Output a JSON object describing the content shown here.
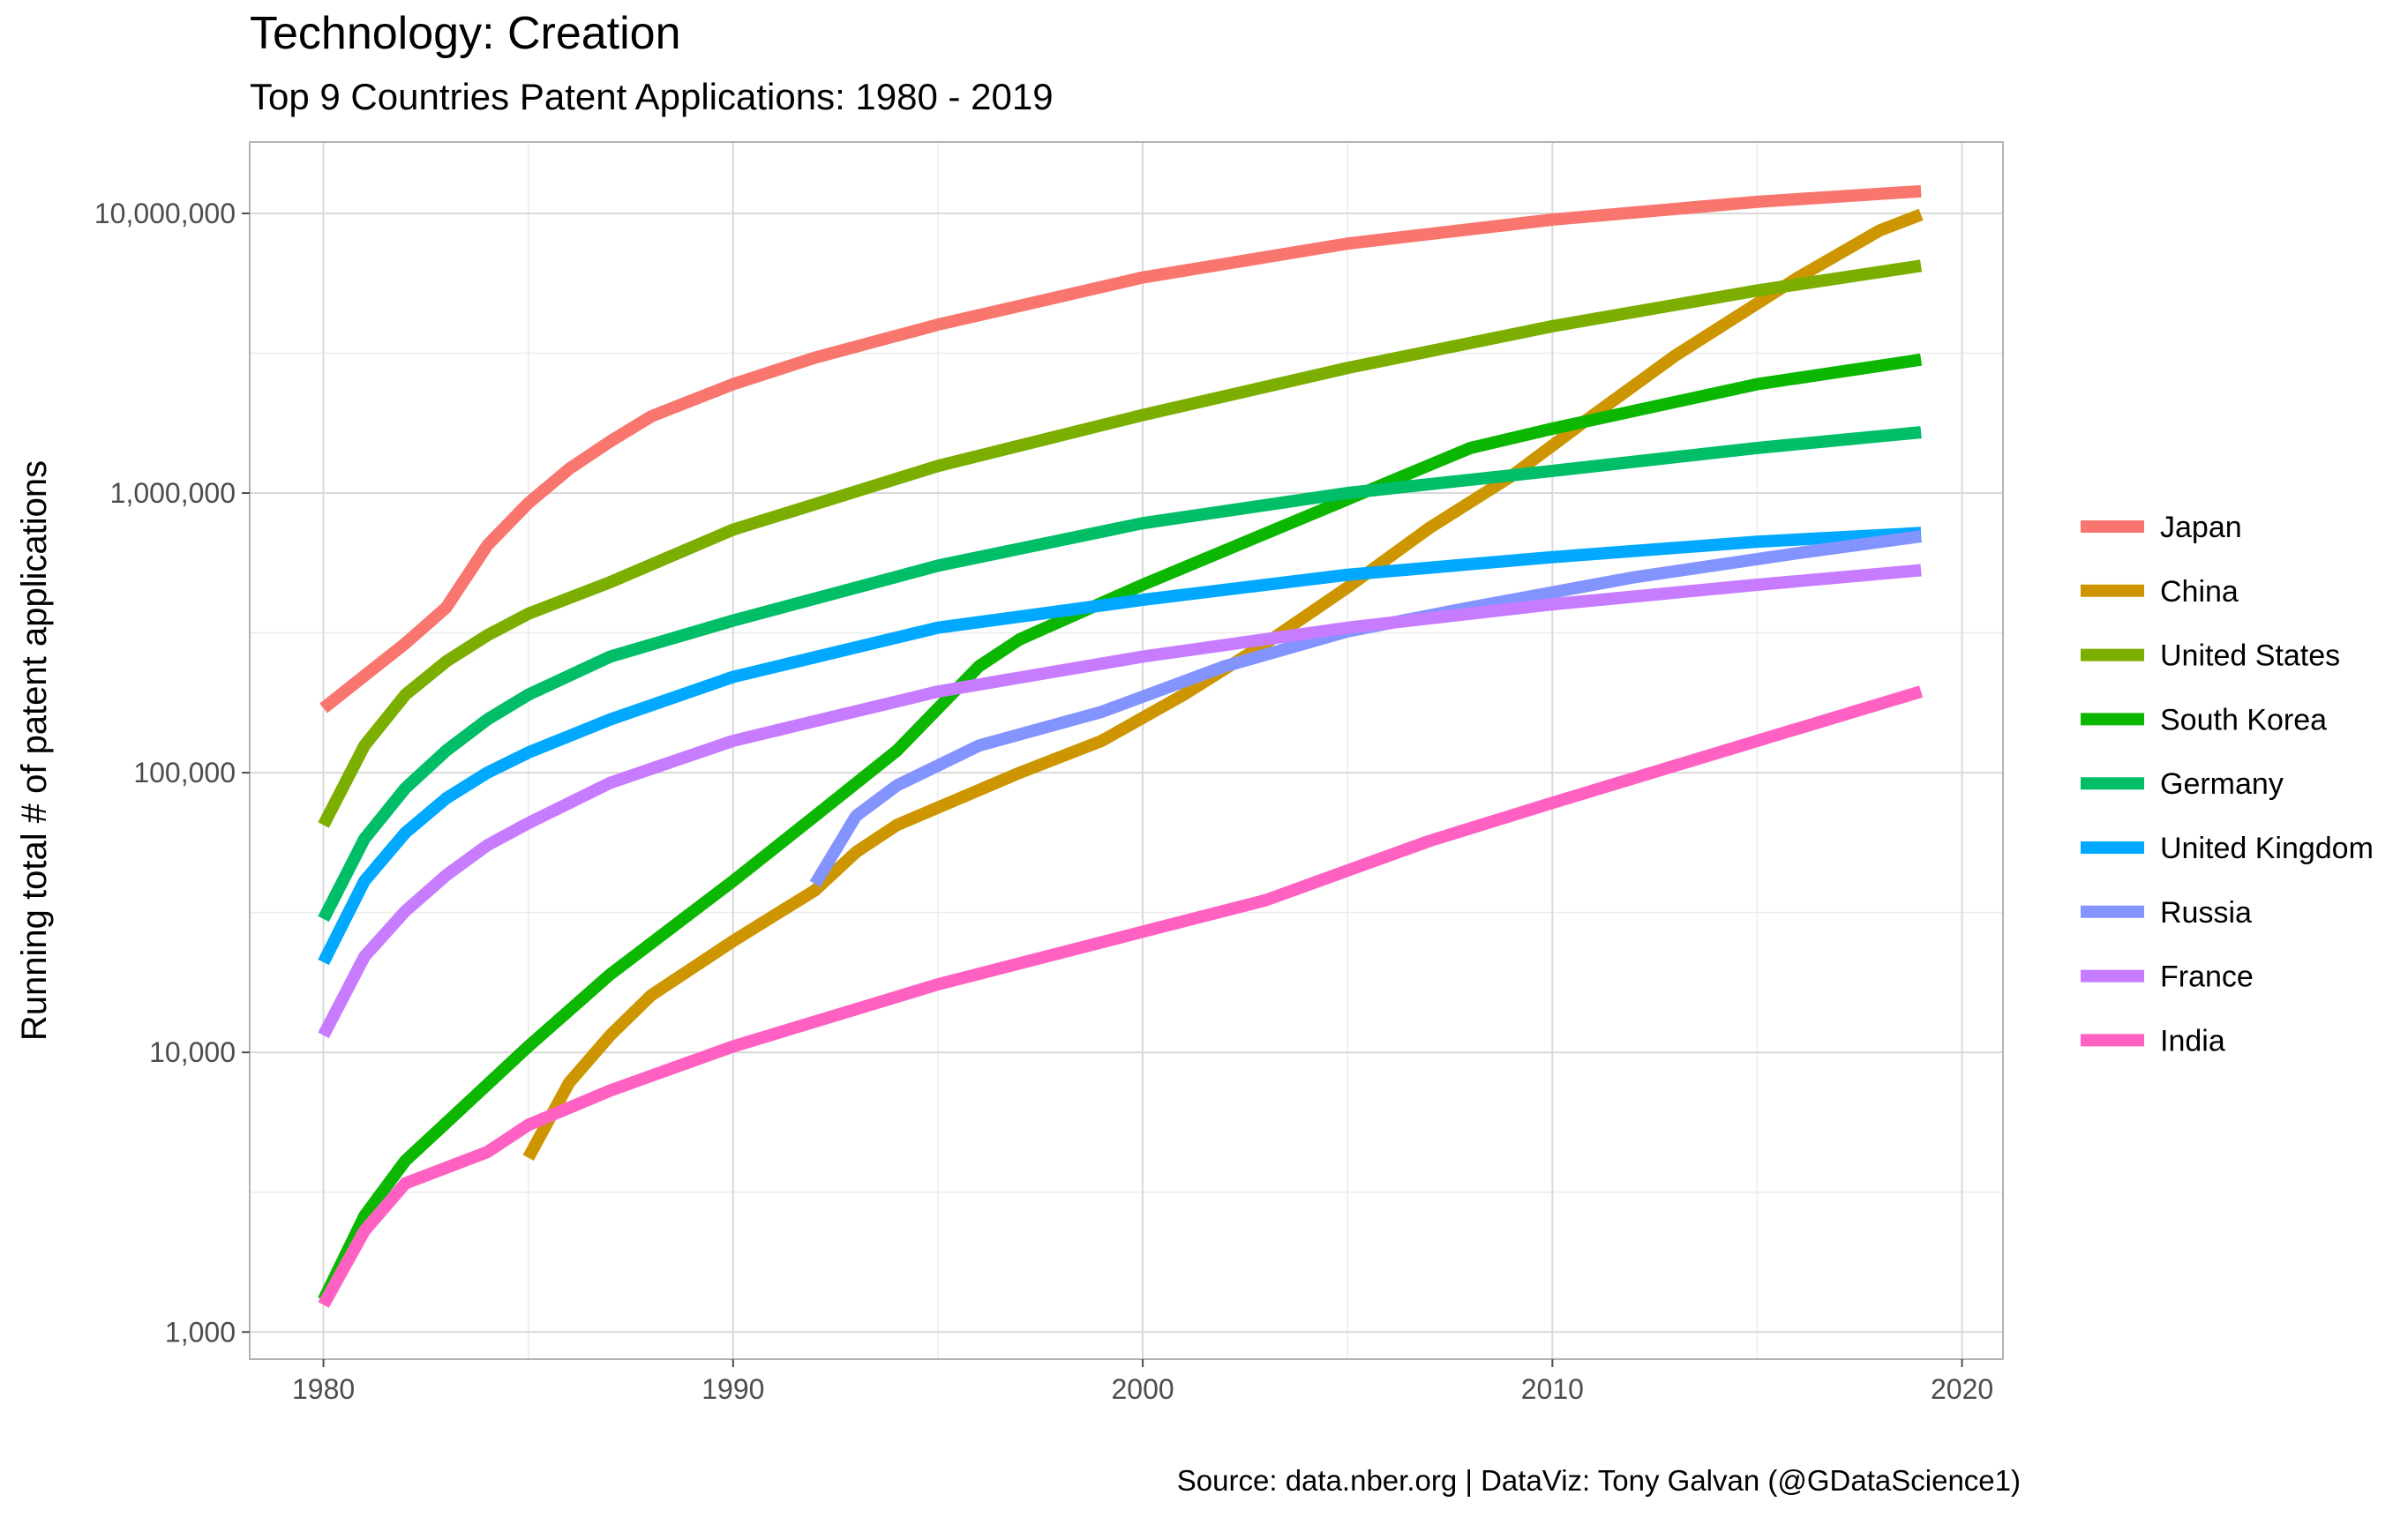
{
  "title": "Technology: Creation",
  "subtitle": "Top 9 Countries Patent Applications: 1980 - 2019",
  "caption": "Source: data.nber.org  |  DataViz: Tony Galvan (@GDataScience1)",
  "chart_data": {
    "type": "line",
    "title": "Technology: Creation",
    "subtitle": "Top 9 Countries Patent Applications: 1980 - 2019",
    "xlabel": "",
    "ylabel": "Running total # of patent applications",
    "y_scale": "log10",
    "xlim": [
      1978.2,
      2021.0
    ],
    "ylim": [
      800,
      18000000
    ],
    "x_ticks": [
      1980,
      1990,
      2000,
      2010,
      2020
    ],
    "x_tick_labels": [
      "1980",
      "1990",
      "2000",
      "2010",
      "2020"
    ],
    "y_ticks": [
      1000,
      10000,
      100000,
      1000000,
      10000000
    ],
    "y_tick_labels": [
      "1,000",
      "10,000",
      "100,000",
      "1,000,000",
      "10,000,000"
    ],
    "grid": true,
    "legend_position": "right",
    "series": [
      {
        "name": "Japan",
        "color": "#F8766D",
        "x": [
          1980,
          1982,
          1983,
          1984,
          1985,
          1986,
          1987,
          1988,
          1990,
          1992,
          1995,
          2000,
          2005,
          2010,
          2015,
          2019
        ],
        "y": [
          170000,
          290000,
          390000,
          650000,
          920000,
          1220000,
          1530000,
          1880000,
          2450000,
          3050000,
          4000000,
          5900000,
          7800000,
          9500000,
          11000000,
          12000000
        ]
      },
      {
        "name": "China",
        "color": "#CD9600",
        "x": [
          1985,
          1986,
          1987,
          1988,
          1990,
          1992,
          1993,
          1994,
          1997,
          1999,
          2001,
          2003,
          2005,
          2007,
          2009,
          2011,
          2013,
          2016,
          2018,
          2019
        ],
        "y": [
          4200,
          7800,
          11500,
          16000,
          25000,
          38000,
          52000,
          65000,
          100000,
          130000,
          190000,
          290000,
          460000,
          750000,
          1150000,
          1900000,
          3100000,
          5900000,
          8700000,
          9900000
        ]
      },
      {
        "name": "United States",
        "color": "#7CAE00",
        "x": [
          1980,
          1981,
          1982,
          1983,
          1984,
          1985,
          1987,
          1990,
          1995,
          2000,
          2005,
          2010,
          2015,
          2019
        ],
        "y": [
          65000,
          125000,
          190000,
          250000,
          310000,
          370000,
          480000,
          740000,
          1250000,
          1900000,
          2800000,
          3950000,
          5300000,
          6500000
        ]
      },
      {
        "name": "South Korea",
        "color": "#0CB702",
        "x": [
          1980,
          1981,
          1982,
          1983,
          1985,
          1987,
          1990,
          1992,
          1994,
          1996,
          1997,
          2000,
          2005,
          2008,
          2010,
          2015,
          2019
        ],
        "y": [
          1300,
          2600,
          4100,
          5600,
          10500,
          19000,
          41000,
          70000,
          120000,
          240000,
          300000,
          470000,
          950000,
          1450000,
          1700000,
          2450000,
          3000000
        ]
      },
      {
        "name": "Germany",
        "color": "#00BE67",
        "x": [
          1980,
          1981,
          1982,
          1983,
          1984,
          1985,
          1987,
          1990,
          1995,
          2000,
          2005,
          2010,
          2015,
          2019
        ],
        "y": [
          30000,
          58000,
          88000,
          120000,
          155000,
          190000,
          260000,
          350000,
          550000,
          780000,
          1000000,
          1200000,
          1450000,
          1650000
        ]
      },
      {
        "name": "United Kingdom",
        "color": "#00A9FF",
        "x": [
          1980,
          1981,
          1982,
          1983,
          1984,
          1985,
          1987,
          1990,
          1995,
          2000,
          2005,
          2010,
          2015,
          2019
        ],
        "y": [
          21000,
          41000,
          61000,
          81000,
          100000,
          118000,
          155000,
          220000,
          330000,
          415000,
          510000,
          590000,
          670000,
          720000
        ]
      },
      {
        "name": "Russia",
        "color": "#8494FF",
        "x": [
          1992,
          1993,
          1994,
          1996,
          1999,
          2002,
          2005,
          2008,
          2012,
          2016,
          2019
        ],
        "y": [
          40000,
          70000,
          90000,
          125000,
          165000,
          240000,
          320000,
          390000,
          500000,
          610000,
          700000
        ]
      },
      {
        "name": "France",
        "color": "#C77CFF",
        "x": [
          1980,
          1981,
          1982,
          1983,
          1984,
          1985,
          1987,
          1990,
          1995,
          2000,
          2005,
          2010,
          2015,
          2019
        ],
        "y": [
          11500,
          22000,
          32000,
          43000,
          55000,
          66000,
          92000,
          130000,
          195000,
          260000,
          330000,
          400000,
          470000,
          530000
        ]
      },
      {
        "name": "India",
        "color": "#FF61C3",
        "x": [
          1980,
          1981,
          1982,
          1984,
          1985,
          1987,
          1990,
          1995,
          2000,
          2003,
          2007,
          2010,
          2015,
          2019
        ],
        "y": [
          1250,
          2300,
          3400,
          4400,
          5500,
          7300,
          10500,
          17500,
          27000,
          35000,
          57000,
          78000,
          130000,
          195000
        ]
      }
    ]
  }
}
